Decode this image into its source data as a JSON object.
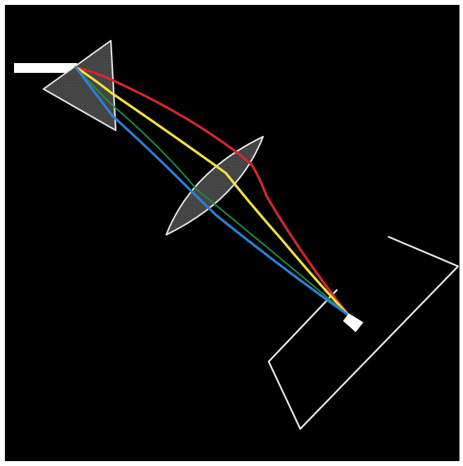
{
  "diagram": {
    "background_color": "#000000",
    "outline_color": "#e6e6e6",
    "glass_fill_color": "#4a4a4a",
    "input_beam_color": "#ffffff",
    "components": [
      "input-beam",
      "prism",
      "converging-lens",
      "screen",
      "focal-spot"
    ],
    "rays": [
      {
        "id": "red",
        "color": "#d8262b"
      },
      {
        "id": "yellow",
        "color": "#f2e03a"
      },
      {
        "id": "green",
        "color": "#1f8a3a"
      },
      {
        "id": "blue",
        "color": "#2b7fd8"
      }
    ]
  }
}
